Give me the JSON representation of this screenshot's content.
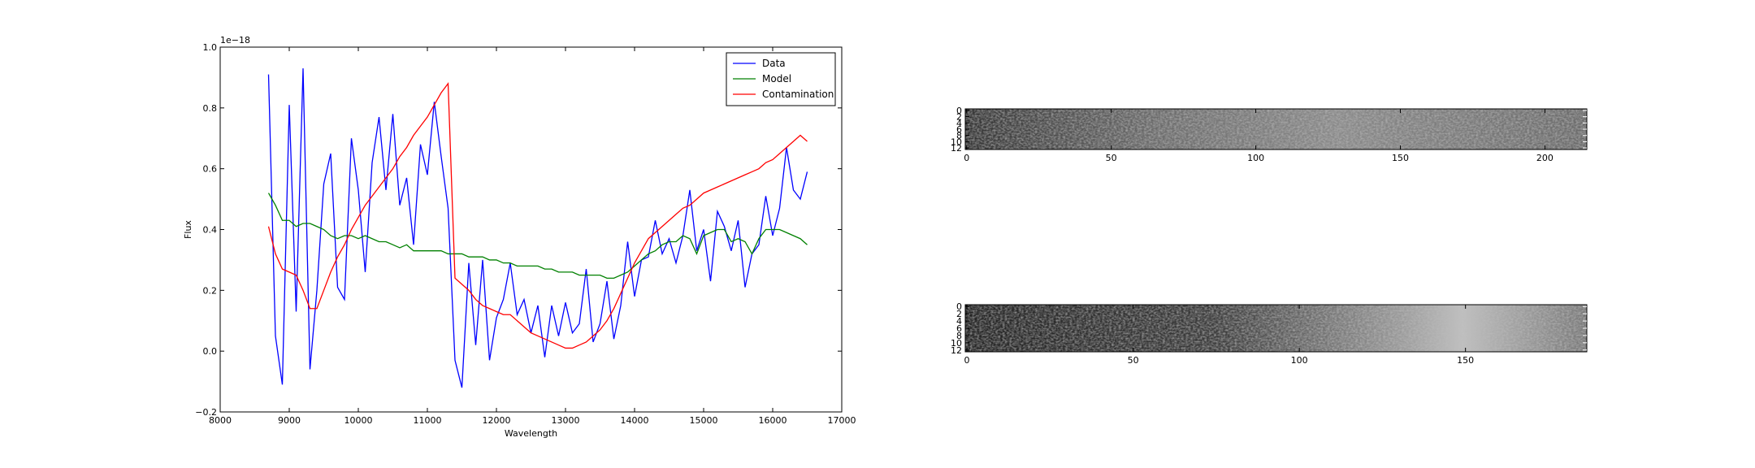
{
  "chart_data": [
    {
      "type": "line",
      "xlabel": "Wavelength",
      "ylabel": "Flux",
      "y_offset_label": "1e−18",
      "x": [
        8700,
        8800,
        8900,
        9000,
        9100,
        9200,
        9300,
        9400,
        9500,
        9600,
        9700,
        9800,
        9900,
        10000,
        10100,
        10200,
        10300,
        10400,
        10500,
        10600,
        10700,
        10800,
        10900,
        11000,
        11100,
        11200,
        11300,
        11400,
        11500,
        11600,
        11700,
        11800,
        11900,
        12000,
        12100,
        12200,
        12300,
        12400,
        12500,
        12600,
        12700,
        12800,
        12900,
        13000,
        13100,
        13200,
        13300,
        13400,
        13500,
        13600,
        13700,
        13800,
        13900,
        14000,
        14100,
        14200,
        14300,
        14400,
        14500,
        14600,
        14700,
        14800,
        14900,
        15000,
        15100,
        15200,
        15300,
        15400,
        15500,
        15600,
        15700,
        15800,
        15900,
        16000,
        16100,
        16200,
        16300,
        16400,
        16500
      ],
      "series": [
        {
          "name": "Data",
          "color": "#0000ff",
          "values": [
            0.91,
            0.05,
            -0.11,
            0.81,
            0.13,
            0.93,
            -0.06,
            0.2,
            0.55,
            0.65,
            0.21,
            0.17,
            0.7,
            0.53,
            0.26,
            0.62,
            0.77,
            0.53,
            0.78,
            0.48,
            0.57,
            0.35,
            0.68,
            0.58,
            0.82,
            0.64,
            0.47,
            -0.03,
            -0.12,
            0.29,
            0.02,
            0.3,
            -0.03,
            0.11,
            0.17,
            0.29,
            0.12,
            0.17,
            0.06,
            0.15,
            -0.02,
            0.15,
            0.05,
            0.16,
            0.06,
            0.09,
            0.27,
            0.03,
            0.09,
            0.23,
            0.04,
            0.15,
            0.36,
            0.18,
            0.3,
            0.31,
            0.43,
            0.32,
            0.37,
            0.29,
            0.38,
            0.53,
            0.33,
            0.4,
            0.23,
            0.46,
            0.41,
            0.33,
            0.43,
            0.21,
            0.32,
            0.35,
            0.51,
            0.38,
            0.47,
            0.67,
            0.53,
            0.5,
            0.59
          ]
        },
        {
          "name": "Model",
          "color": "#008000",
          "values": [
            0.52,
            0.48,
            0.43,
            0.43,
            0.41,
            0.42,
            0.42,
            0.41,
            0.4,
            0.38,
            0.37,
            0.38,
            0.38,
            0.37,
            0.38,
            0.37,
            0.36,
            0.36,
            0.35,
            0.34,
            0.35,
            0.33,
            0.33,
            0.33,
            0.33,
            0.33,
            0.32,
            0.32,
            0.32,
            0.31,
            0.31,
            0.31,
            0.3,
            0.3,
            0.29,
            0.29,
            0.28,
            0.28,
            0.28,
            0.28,
            0.27,
            0.27,
            0.26,
            0.26,
            0.26,
            0.25,
            0.25,
            0.25,
            0.25,
            0.24,
            0.24,
            0.25,
            0.26,
            0.28,
            0.3,
            0.32,
            0.33,
            0.35,
            0.36,
            0.36,
            0.38,
            0.37,
            0.32,
            0.38,
            0.39,
            0.4,
            0.4,
            0.36,
            0.37,
            0.36,
            0.32,
            0.37,
            0.4,
            0.4,
            0.4,
            0.39,
            0.38,
            0.37,
            0.35
          ]
        },
        {
          "name": "Contamination",
          "color": "#ff0000",
          "values": [
            0.41,
            0.32,
            0.27,
            0.26,
            0.25,
            0.2,
            0.14,
            0.14,
            0.2,
            0.26,
            0.31,
            0.35,
            0.4,
            0.44,
            0.48,
            0.51,
            0.54,
            0.57,
            0.6,
            0.64,
            0.67,
            0.71,
            0.74,
            0.77,
            0.81,
            0.85,
            0.88,
            0.24,
            0.22,
            0.2,
            0.17,
            0.15,
            0.14,
            0.13,
            0.12,
            0.12,
            0.1,
            0.08,
            0.06,
            0.05,
            0.04,
            0.03,
            0.02,
            0.01,
            0.01,
            0.02,
            0.03,
            0.05,
            0.07,
            0.1,
            0.14,
            0.19,
            0.24,
            0.29,
            0.33,
            0.37,
            0.39,
            0.41,
            0.43,
            0.45,
            0.47,
            0.48,
            0.5,
            0.52,
            0.53,
            0.54,
            0.55,
            0.56,
            0.57,
            0.58,
            0.59,
            0.6,
            0.62,
            0.63,
            0.65,
            0.67,
            0.69,
            0.71,
            0.69
          ]
        }
      ],
      "xlim": [
        8000,
        17000
      ],
      "xticks": [
        8000,
        9000,
        10000,
        11000,
        12000,
        13000,
        14000,
        15000,
        16000,
        17000
      ],
      "ylim": [
        -0.2,
        1.0
      ],
      "yticks": [
        {
          "value": -0.2,
          "label": "−0.2"
        },
        {
          "value": 0,
          "label": "0.0"
        },
        {
          "value": 0.2,
          "label": "0.2"
        },
        {
          "value": 0.4,
          "label": "0.4"
        },
        {
          "value": 0.6,
          "label": "0.6"
        },
        {
          "value": 0.8,
          "label": "0.8"
        },
        {
          "value": 1,
          "label": "1.0"
        }
      ],
      "legend": "upper right"
    },
    {
      "type": "image",
      "xlim": [
        -0.5,
        214.5
      ],
      "xticks": [
        0,
        50,
        100,
        150,
        200
      ],
      "ylim": [
        12.5,
        -0.5
      ],
      "yticks": [
        0,
        2,
        4,
        6,
        8,
        10,
        12
      ]
    },
    {
      "type": "image",
      "xlim": [
        -0.5,
        186.5
      ],
      "xticks": [
        0,
        50,
        100,
        150
      ],
      "ylim": [
        12.5,
        -0.5
      ],
      "yticks": [
        0,
        2,
        4,
        6,
        8,
        10,
        12
      ]
    }
  ]
}
